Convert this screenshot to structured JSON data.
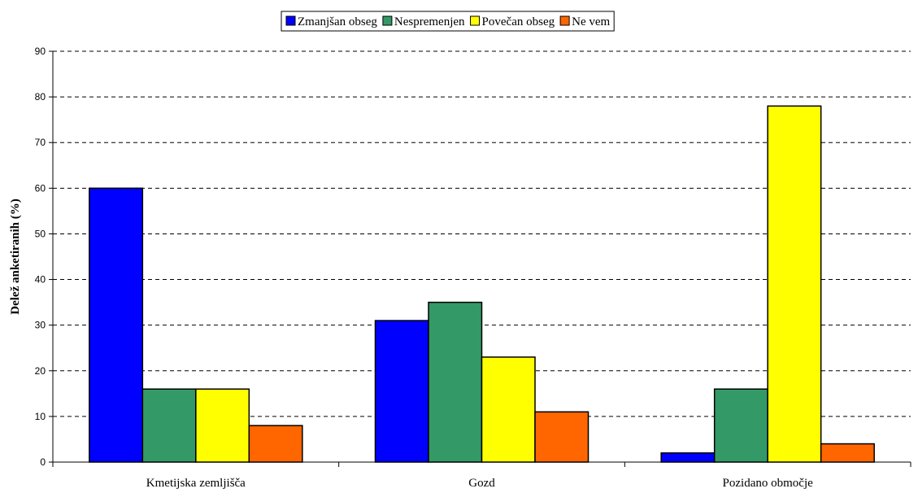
{
  "chart_data": {
    "type": "bar",
    "ylabel": "Delež anketiranih (%)",
    "xlabel": "",
    "ylim": [
      0,
      90
    ],
    "yticks": [
      0,
      10,
      20,
      30,
      40,
      50,
      60,
      70,
      80,
      90
    ],
    "grid": "horizontal-dashed",
    "legend_position": "top",
    "categories": [
      "Kmetijska zemljišča",
      "Gozd",
      "Pozidano območje"
    ],
    "series": [
      {
        "name": "Zmanjšan obseg",
        "color": "#0000ff",
        "values": [
          60,
          31,
          2
        ]
      },
      {
        "name": "Nespremenjen",
        "color": "#339966",
        "values": [
          16,
          35,
          16
        ]
      },
      {
        "name": "Povečan obseg",
        "color": "#ffff00",
        "values": [
          16,
          23,
          78
        ]
      },
      {
        "name": "Ne vem",
        "color": "#ff6600",
        "values": [
          8,
          11,
          4
        ]
      }
    ]
  }
}
